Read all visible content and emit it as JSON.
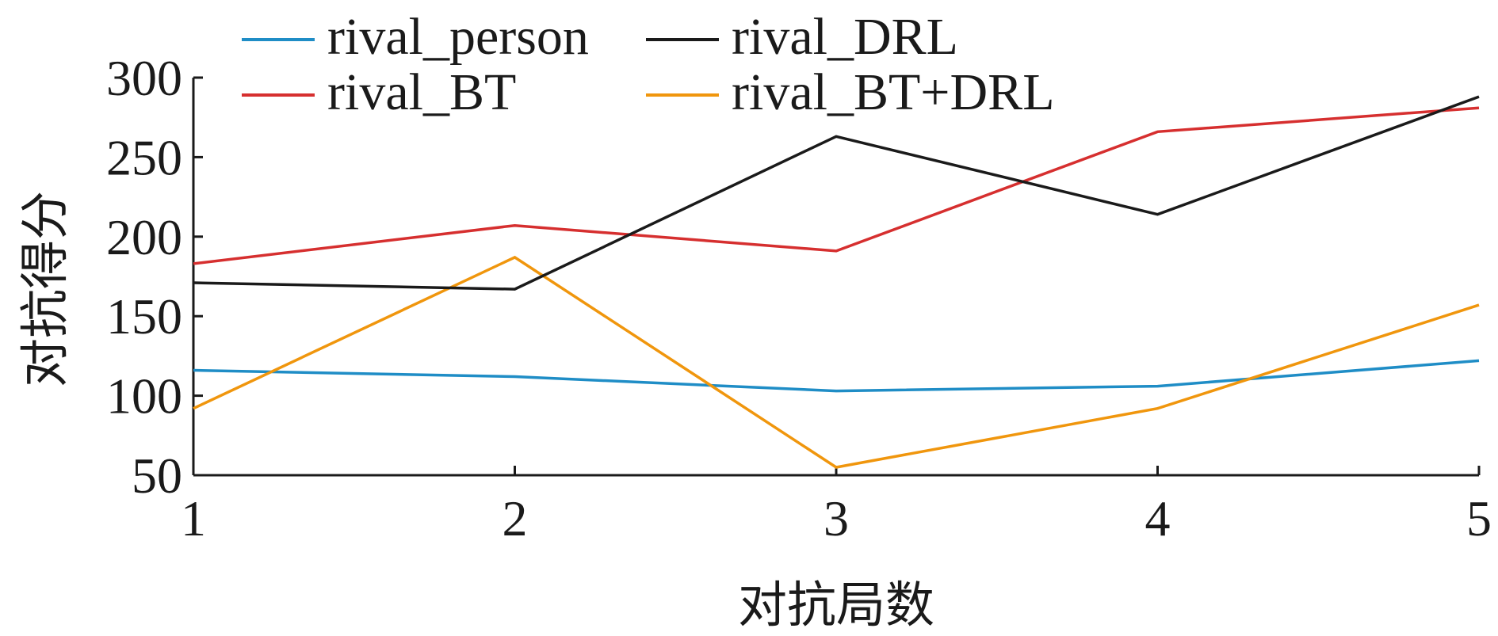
{
  "chart_data": {
    "type": "line",
    "title": "",
    "xlabel": "对抗局数",
    "ylabel": "对抗得分",
    "x": [
      1,
      2,
      3,
      4,
      5
    ],
    "xticks": [
      "1",
      "2",
      "3",
      "4",
      "5"
    ],
    "yticks": [
      "50",
      "100",
      "150",
      "200",
      "250",
      "300"
    ],
    "xlim": [
      1,
      5
    ],
    "ylim": [
      50,
      300
    ],
    "grid": false,
    "legend_position": "top-left",
    "series": [
      {
        "name": "rival_person",
        "color": "#1f8dc6",
        "values": [
          116,
          112,
          103,
          106,
          122
        ]
      },
      {
        "name": "rival_DRL",
        "color": "#1a1a1a",
        "values": [
          171,
          167,
          263,
          214,
          288
        ]
      },
      {
        "name": "rival_BT",
        "color": "#d62f2f",
        "values": [
          183,
          207,
          191,
          266,
          281
        ]
      },
      {
        "name": "rival_BT+DRL",
        "color": "#f0960d",
        "values": [
          92,
          187,
          55,
          92,
          157
        ]
      }
    ]
  }
}
